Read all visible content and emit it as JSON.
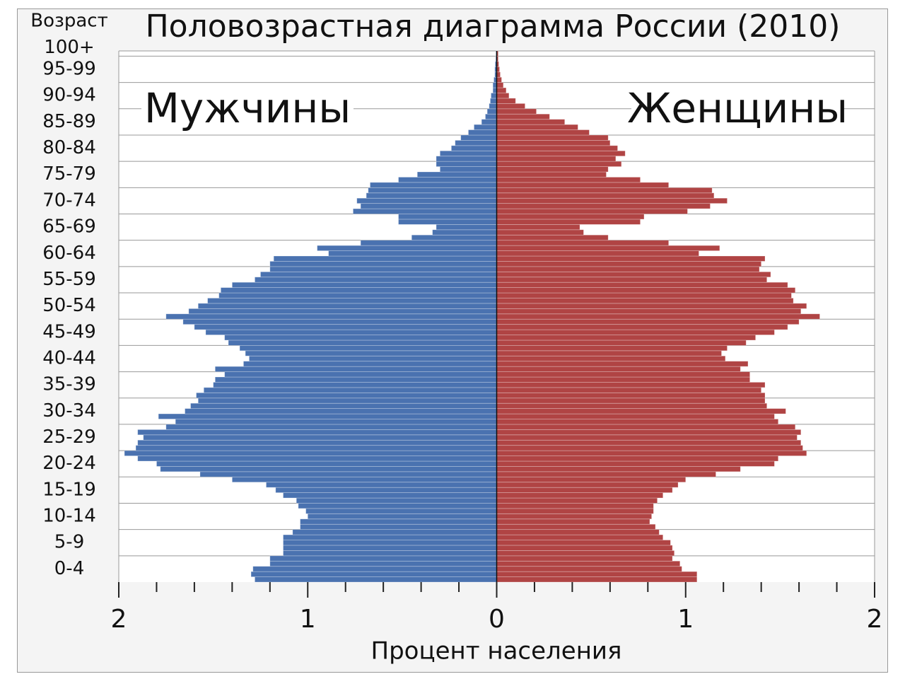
{
  "chart_data": {
    "type": "pyramid",
    "title": "Половозрастная диаграмма России (2010)",
    "ylabel": "Возраст",
    "xlabel": "Процент населения",
    "categories": [
      null,
      null,
      "0-4",
      null,
      null,
      null,
      null,
      "5-9",
      null,
      null,
      null,
      null,
      "10-14",
      null,
      null,
      null,
      null,
      "15-19",
      null,
      null,
      null,
      null,
      "20-24",
      null,
      null,
      null,
      null,
      "25-29",
      null,
      null,
      null,
      null,
      "30-34",
      null,
      null,
      null,
      null,
      "35-39",
      null,
      null,
      null,
      null,
      "40-44",
      null,
      null,
      null,
      null,
      "45-49",
      null,
      null,
      null,
      null,
      "50-54",
      null,
      null,
      null,
      null,
      "55-59",
      null,
      null,
      null,
      null,
      "60-64",
      null,
      null,
      null,
      null,
      "65-69",
      null,
      null,
      null,
      null,
      "70-74",
      null,
      null,
      null,
      null,
      "75-79",
      null,
      null,
      null,
      null,
      "80-84",
      null,
      null,
      null,
      null,
      "85-89",
      null,
      null,
      null,
      null,
      "90-94",
      null,
      null,
      null,
      null,
      "95-99",
      null,
      null,
      "100+"
    ],
    "series": [
      {
        "name": "Мужчины",
        "color": "#4a72b0",
        "values": [
          1.28,
          1.3,
          1.29,
          1.2,
          1.2,
          1.13,
          1.13,
          1.13,
          1.13,
          1.08,
          1.04,
          1.04,
          1.0,
          1.01,
          1.05,
          1.06,
          1.13,
          1.17,
          1.22,
          1.4,
          1.57,
          1.78,
          1.8,
          1.9,
          1.97,
          1.91,
          1.9,
          1.87,
          1.9,
          1.75,
          1.7,
          1.79,
          1.65,
          1.62,
          1.58,
          1.59,
          1.55,
          1.5,
          1.49,
          1.44,
          1.49,
          1.34,
          1.31,
          1.33,
          1.36,
          1.42,
          1.44,
          1.54,
          1.6,
          1.66,
          1.75,
          1.63,
          1.58,
          1.53,
          1.47,
          1.46,
          1.4,
          1.28,
          1.25,
          1.2,
          1.2,
          1.18,
          0.89,
          0.95,
          0.72,
          0.45,
          0.34,
          0.32,
          0.52,
          0.52,
          0.76,
          0.72,
          0.74,
          0.69,
          0.68,
          0.67,
          0.52,
          0.42,
          0.3,
          0.32,
          0.32,
          0.3,
          0.24,
          0.22,
          0.19,
          0.15,
          0.12,
          0.08,
          0.06,
          0.05,
          0.04,
          0.034,
          0.03,
          0.02,
          0.02,
          0.015,
          0.01,
          0.01,
          0.008,
          0.005,
          0.004
        ]
      },
      {
        "name": "Женщины",
        "color": "#b04444",
        "values": [
          1.06,
          1.06,
          0.98,
          0.97,
          0.93,
          0.94,
          0.93,
          0.92,
          0.88,
          0.86,
          0.84,
          0.81,
          0.82,
          0.83,
          0.83,
          0.85,
          0.88,
          0.93,
          0.96,
          1.0,
          1.16,
          1.29,
          1.47,
          1.49,
          1.64,
          1.62,
          1.61,
          1.59,
          1.61,
          1.58,
          1.49,
          1.47,
          1.53,
          1.43,
          1.42,
          1.42,
          1.4,
          1.42,
          1.34,
          1.34,
          1.29,
          1.33,
          1.21,
          1.19,
          1.22,
          1.32,
          1.37,
          1.47,
          1.54,
          1.6,
          1.71,
          1.61,
          1.64,
          1.57,
          1.56,
          1.58,
          1.54,
          1.43,
          1.45,
          1.39,
          1.4,
          1.42,
          1.07,
          1.18,
          0.91,
          0.59,
          0.46,
          0.44,
          0.76,
          0.78,
          1.01,
          1.13,
          1.22,
          1.15,
          1.14,
          0.91,
          0.76,
          0.58,
          0.59,
          0.66,
          0.63,
          0.68,
          0.64,
          0.6,
          0.59,
          0.49,
          0.43,
          0.36,
          0.28,
          0.21,
          0.15,
          0.1,
          0.065,
          0.05,
          0.035,
          0.026,
          0.019,
          0.015,
          0.011,
          0.008,
          0.008
        ]
      }
    ],
    "xlim": [
      -2,
      2
    ],
    "xticks": [
      {
        "value": -2,
        "label": "2"
      },
      {
        "value": -1,
        "label": "1"
      },
      0,
      1,
      2
    ],
    "xminorticks": [
      -1.8,
      -1.6,
      -1.4,
      -1.2,
      -0.8,
      -0.6,
      -0.4,
      -0.2,
      0.2,
      0.4,
      0.6,
      0.8,
      1.2,
      1.4,
      1.6,
      1.8
    ]
  }
}
